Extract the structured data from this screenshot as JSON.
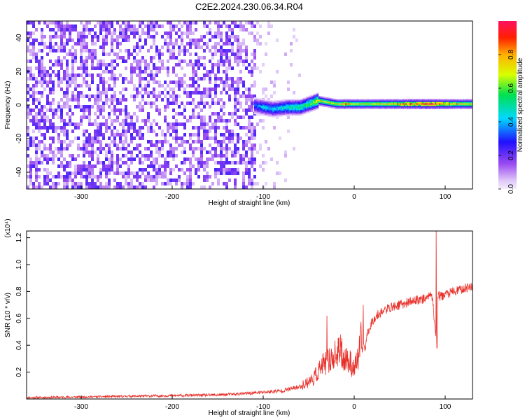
{
  "title": "C2E2.2024.230.06.34.R04",
  "chart_data": [
    {
      "type": "heatmap",
      "xlabel": "Height of straight line (km)",
      "ylabel": "Frequency (Hz)",
      "xlim": [
        -360,
        130
      ],
      "ylim": [
        -50,
        50
      ],
      "xticks": [
        -300,
        -200,
        -100,
        0,
        100
      ],
      "yticks": [
        -40,
        -20,
        0,
        20,
        40
      ],
      "colorbar": {
        "label": "Normalized spectral amplitude",
        "range": [
          0.0,
          1.0
        ],
        "ticks": [
          0.0,
          0.2,
          0.4,
          0.6,
          0.8
        ],
        "colormap": "rainbow"
      },
      "noise_region": {
        "x_range": [
          -360,
          -110
        ],
        "description": "broadband noise scattered across all frequencies"
      },
      "signal_band": [
        {
          "x": -110,
          "f": 0,
          "amp": 0.35
        },
        {
          "x": -100,
          "f": -1,
          "amp": 0.45
        },
        {
          "x": -90,
          "f": -2,
          "amp": 0.45
        },
        {
          "x": -75,
          "f": -1,
          "amp": 0.5
        },
        {
          "x": -60,
          "f": -1,
          "amp": 0.55
        },
        {
          "x": -50,
          "f": 1,
          "amp": 0.6
        },
        {
          "x": -40,
          "f": 3,
          "amp": 0.75
        },
        {
          "x": -30,
          "f": 2,
          "amp": 0.7
        },
        {
          "x": -20,
          "f": 1,
          "amp": 0.7
        },
        {
          "x": -10,
          "f": 1,
          "amp": 0.8
        },
        {
          "x": 0,
          "f": 1,
          "amp": 0.7
        },
        {
          "x": 20,
          "f": 1,
          "amp": 0.7
        },
        {
          "x": 40,
          "f": 1,
          "amp": 0.75
        },
        {
          "x": 60,
          "f": 1,
          "amp": 0.85
        },
        {
          "x": 80,
          "f": 1,
          "amp": 0.95
        },
        {
          "x": 90,
          "f": 1,
          "amp": 0.9
        },
        {
          "x": 110,
          "f": 1,
          "amp": 0.75
        },
        {
          "x": 130,
          "f": 1,
          "amp": 0.7
        }
      ]
    },
    {
      "type": "line",
      "xlabel": "Height of straight line (km)",
      "ylabel": "SNR (10 * v/v)",
      "y_multiplier": "(x10⁴)",
      "xlim": [
        -360,
        130
      ],
      "ylim": [
        0,
        1.25
      ],
      "xticks": [
        -300,
        -200,
        -100,
        0,
        100
      ],
      "yticks": [
        0.2,
        0.4,
        0.6,
        0.8,
        1.0,
        1.2
      ],
      "color": "#e8302a",
      "series": [
        {
          "x": [
            -360,
            -300,
            -250,
            -200,
            -150,
            -120,
            -100,
            -80,
            -60,
            -45,
            -35,
            -25,
            -20,
            -15,
            -10,
            -5,
            0,
            5,
            8,
            12,
            15,
            20,
            25,
            30,
            40,
            50,
            60,
            70,
            80,
            85,
            88,
            90,
            92,
            95,
            100,
            110,
            120,
            130
          ],
          "y": [
            0.01,
            0.015,
            0.02,
            0.025,
            0.03,
            0.04,
            0.05,
            0.06,
            0.09,
            0.15,
            0.25,
            0.3,
            0.33,
            0.35,
            0.3,
            0.28,
            0.22,
            0.32,
            0.45,
            0.38,
            0.5,
            0.58,
            0.62,
            0.65,
            0.68,
            0.7,
            0.72,
            0.74,
            0.75,
            0.8,
            0.6,
            0.45,
            0.78,
            0.76,
            0.78,
            0.8,
            0.82,
            0.84
          ]
        }
      ],
      "spikes": [
        {
          "x": -30,
          "y": 0.62
        },
        {
          "x": -15,
          "y": 0.48
        },
        {
          "x": 10,
          "y": 0.7
        },
        {
          "x": 90,
          "y": 1.25
        },
        {
          "x": 91,
          "y": 0.38
        }
      ]
    }
  ]
}
